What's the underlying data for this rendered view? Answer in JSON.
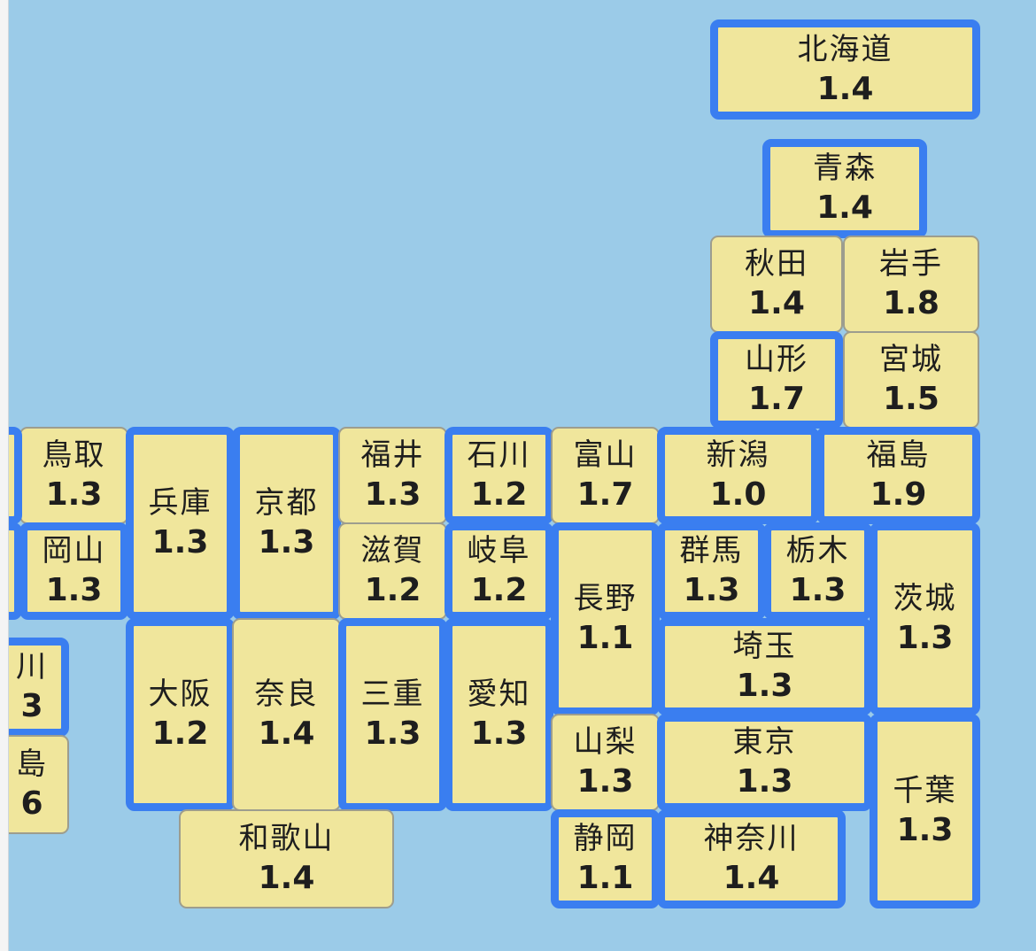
{
  "colors": {
    "sea": "#9bcbe8",
    "tile_fill": "#f0e69c",
    "highlight_border": "#3a7ef0",
    "normal_border": "#9d9d8e"
  },
  "prefectures": [
    {
      "id": "hokkaido",
      "name": "北海道",
      "value": "1.4",
      "highlighted": true
    },
    {
      "id": "aomori",
      "name": "青森",
      "value": "1.4",
      "highlighted": true
    },
    {
      "id": "akita",
      "name": "秋田",
      "value": "1.4",
      "highlighted": false
    },
    {
      "id": "iwate",
      "name": "岩手",
      "value": "1.8",
      "highlighted": false
    },
    {
      "id": "yamagata",
      "name": "山形",
      "value": "1.7",
      "highlighted": true
    },
    {
      "id": "miyagi",
      "name": "宮城",
      "value": "1.5",
      "highlighted": false
    },
    {
      "id": "tottori",
      "name": "鳥取",
      "value": "1.3",
      "highlighted": false
    },
    {
      "id": "hyogo",
      "name": "兵庫",
      "value": "1.3",
      "highlighted": true
    },
    {
      "id": "kyoto",
      "name": "京都",
      "value": "1.3",
      "highlighted": true
    },
    {
      "id": "fukui",
      "name": "福井",
      "value": "1.3",
      "highlighted": false
    },
    {
      "id": "ishikawa",
      "name": "石川",
      "value": "1.2",
      "highlighted": true
    },
    {
      "id": "toyama",
      "name": "富山",
      "value": "1.7",
      "highlighted": false
    },
    {
      "id": "niigata",
      "name": "新潟",
      "value": "1.0",
      "highlighted": true
    },
    {
      "id": "fukushima",
      "name": "福島",
      "value": "1.9",
      "highlighted": true
    },
    {
      "id": "okayama",
      "name": "岡山",
      "value": "1.3",
      "highlighted": true
    },
    {
      "id": "shiga",
      "name": "滋賀",
      "value": "1.2",
      "highlighted": false
    },
    {
      "id": "gifu",
      "name": "岐阜",
      "value": "1.2",
      "highlighted": true
    },
    {
      "id": "nagano",
      "name": "長野",
      "value": "1.1",
      "highlighted": true
    },
    {
      "id": "gunma",
      "name": "群馬",
      "value": "1.3",
      "highlighted": true
    },
    {
      "id": "tochigi",
      "name": "栃木",
      "value": "1.3",
      "highlighted": true
    },
    {
      "id": "ibaraki",
      "name": "茨城",
      "value": "1.3",
      "highlighted": true
    },
    {
      "id": "saitama",
      "name": "埼玉",
      "value": "1.3",
      "highlighted": true
    },
    {
      "id": "kagawa",
      "name": "川",
      "value": "3",
      "highlighted": true
    },
    {
      "id": "tokushima",
      "name": "島",
      "value": "6",
      "highlighted": false
    },
    {
      "id": "osaka",
      "name": "大阪",
      "value": "1.2",
      "highlighted": true
    },
    {
      "id": "nara",
      "name": "奈良",
      "value": "1.4",
      "highlighted": false
    },
    {
      "id": "mie",
      "name": "三重",
      "value": "1.3",
      "highlighted": true
    },
    {
      "id": "aichi",
      "name": "愛知",
      "value": "1.3",
      "highlighted": true
    },
    {
      "id": "yamanashi",
      "name": "山梨",
      "value": "1.3",
      "highlighted": false
    },
    {
      "id": "tokyo",
      "name": "東京",
      "value": "1.3",
      "highlighted": true
    },
    {
      "id": "chiba",
      "name": "千葉",
      "value": "1.3",
      "highlighted": true
    },
    {
      "id": "wakayama",
      "name": "和歌山",
      "value": "1.4",
      "highlighted": false
    },
    {
      "id": "shizuoka",
      "name": "静岡",
      "value": "1.1",
      "highlighted": true
    },
    {
      "id": "kanagawa",
      "name": "神奈川",
      "value": "1.4",
      "highlighted": true
    },
    {
      "id": "shimane",
      "name": "",
      "value": "",
      "highlighted": true
    },
    {
      "id": "hiroshima",
      "name": "",
      "value": "",
      "highlighted": true
    }
  ]
}
